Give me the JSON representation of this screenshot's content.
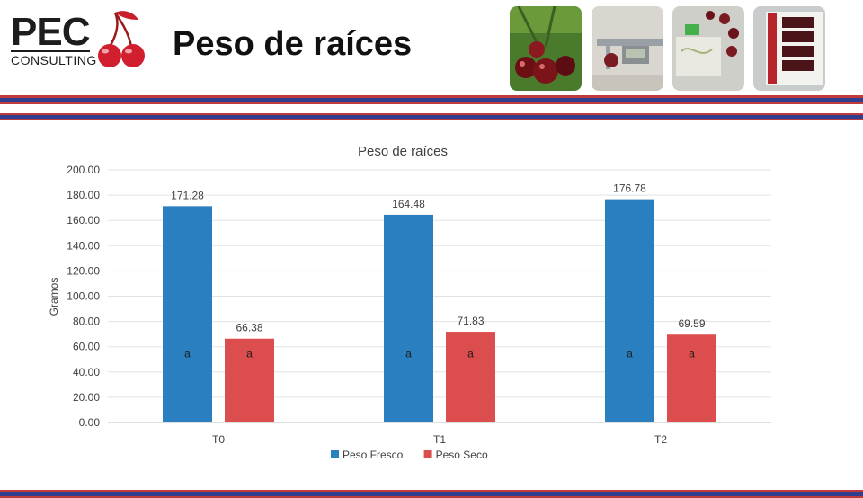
{
  "header": {
    "logo_text": "PEC",
    "logo_subtext": "CONSULTING",
    "title": "Peso de raíces"
  },
  "colors": {
    "fresco": "#2a7fc1",
    "seco": "#dc4d4d",
    "band_red": "#c0393b",
    "band_blue": "#2e3f8f"
  },
  "chart_data": {
    "type": "bar",
    "title": "Peso de raíces",
    "xlabel": "",
    "ylabel": "Gramos",
    "categories": [
      "T0",
      "T1",
      "T2"
    ],
    "series": [
      {
        "name": "Peso Fresco",
        "values": [
          171.28,
          164.48,
          176.78
        ],
        "labels": [
          "171.28",
          "164.48",
          "176.78"
        ],
        "letters": [
          "a",
          "a",
          "a"
        ],
        "color": "#2a7fc1"
      },
      {
        "name": "Peso Seco",
        "values": [
          66.38,
          71.83,
          69.59
        ],
        "labels": [
          "66.38",
          "71.83",
          "69.59"
        ],
        "letters": [
          "a",
          "a",
          "a"
        ],
        "color": "#dc4d4d"
      }
    ],
    "ylim": [
      0,
      200
    ],
    "yticks": [
      "0.00",
      "20.00",
      "40.00",
      "60.00",
      "80.00",
      "100.00",
      "120.00",
      "140.00",
      "160.00",
      "180.00",
      "200.00"
    ],
    "grid": true,
    "legend": "bottom"
  }
}
